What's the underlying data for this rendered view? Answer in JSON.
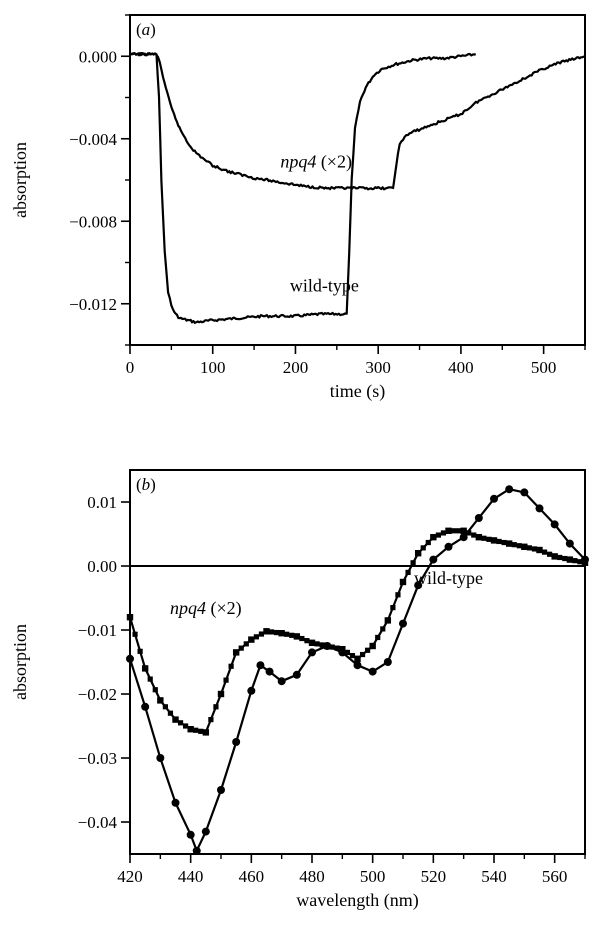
{
  "chart_data": [
    {
      "type": "line",
      "panel_label": "a",
      "xlabel": "time (s)",
      "ylabel": "absorption",
      "xlim": [
        0,
        550
      ],
      "ylim": [
        -0.014,
        0.002
      ],
      "xticks": [
        "0",
        "100",
        "200",
        "300",
        "400",
        "500"
      ],
      "yticks": [
        "0.000",
        "−0.004",
        "−0.008",
        "−0.012"
      ],
      "annotations": [
        {
          "name": "npq4",
          "suffix": "(×2)",
          "x": 225,
          "y": -0.0054
        },
        {
          "name": "wild-type",
          "suffix": "",
          "x": 235,
          "y": -0.0114
        }
      ],
      "series": [
        {
          "name": "wild-type",
          "x": [
            0,
            20,
            32,
            35,
            38,
            42,
            46,
            50,
            55,
            60,
            70,
            80,
            100,
            130,
            160,
            200,
            230,
            258,
            262,
            265,
            268,
            272,
            278,
            285,
            295,
            305,
            320,
            340,
            360,
            380,
            400,
            418
          ],
          "y": [
            0.0001,
            0.0001,
            0.0001,
            -0.002,
            -0.006,
            -0.0095,
            -0.0114,
            -0.0121,
            -0.0125,
            -0.0127,
            -0.0128,
            -0.0129,
            -0.0128,
            -0.0127,
            -0.0126,
            -0.0126,
            -0.0125,
            -0.0125,
            -0.0125,
            -0.0095,
            -0.006,
            -0.0035,
            -0.0022,
            -0.0015,
            -0.0009,
            -0.0006,
            -0.0004,
            -0.0002,
            -0.0001,
            -0.0001,
            0.0,
            0.0001
          ]
        },
        {
          "name": "npq4 (×2)",
          "x": [
            0,
            20,
            32,
            36,
            40,
            45,
            50,
            55,
            60,
            70,
            80,
            100,
            120,
            150,
            180,
            210,
            240,
            270,
            300,
            318,
            322,
            326,
            332,
            340,
            360,
            380,
            400,
            420,
            440,
            460,
            480,
            500,
            520,
            540,
            550
          ],
          "y": [
            0.0001,
            0.0001,
            0.0001,
            -0.0003,
            -0.001,
            -0.0018,
            -0.0025,
            -0.003,
            -0.0035,
            -0.0042,
            -0.0047,
            -0.0053,
            -0.0056,
            -0.0059,
            -0.0061,
            -0.0063,
            -0.0064,
            -0.0064,
            -0.0064,
            -0.0064,
            -0.0052,
            -0.0043,
            -0.0039,
            -0.0037,
            -0.0034,
            -0.0031,
            -0.0028,
            -0.0022,
            -0.0018,
            -0.0014,
            -0.001,
            -0.0006,
            -0.0003,
            -0.0001,
            0.0
          ]
        }
      ]
    },
    {
      "type": "line",
      "panel_label": "b",
      "xlabel": "wavelength (nm)",
      "ylabel": "absorption",
      "xlim": [
        420,
        570
      ],
      "ylim": [
        -0.045,
        0.015
      ],
      "xticks": [
        "420",
        "440",
        "460",
        "480",
        "500",
        "520",
        "540",
        "560"
      ],
      "yticks": [
        "0.01",
        "0.00",
        "−0.01",
        "−0.02",
        "−0.03",
        "−0.04"
      ],
      "annotations": [
        {
          "name": "npq4",
          "suffix": "(×2)",
          "x": 445,
          "y": -0.0075
        },
        {
          "name": "wild-type",
          "suffix": "",
          "x": 525,
          "y": -0.0028
        }
      ],
      "series": [
        {
          "name": "wild-type",
          "marker": "circle",
          "x": [
            420,
            425,
            430,
            435,
            440,
            442,
            445,
            450,
            455,
            460,
            463,
            466,
            470,
            475,
            480,
            485,
            490,
            495,
            500,
            505,
            510,
            515,
            520,
            525,
            530,
            535,
            540,
            545,
            550,
            555,
            560,
            565,
            570
          ],
          "y": [
            -0.0145,
            -0.022,
            -0.03,
            -0.037,
            -0.042,
            -0.0445,
            -0.0415,
            -0.035,
            -0.0275,
            -0.0195,
            -0.0155,
            -0.0165,
            -0.018,
            -0.017,
            -0.0135,
            -0.0125,
            -0.0135,
            -0.0155,
            -0.0165,
            -0.015,
            -0.009,
            -0.003,
            0.001,
            0.003,
            0.0045,
            0.0075,
            0.0105,
            0.012,
            0.0115,
            0.009,
            0.0065,
            0.0035,
            0.001
          ]
        },
        {
          "name": "npq4 (×2)",
          "marker": "square",
          "x": [
            420,
            425,
            430,
            435,
            440,
            445,
            450,
            455,
            460,
            465,
            470,
            475,
            480,
            485,
            490,
            495,
            500,
            505,
            510,
            515,
            520,
            525,
            530,
            535,
            540,
            545,
            550,
            555,
            560,
            565,
            570
          ],
          "y": [
            -0.008,
            -0.016,
            -0.021,
            -0.024,
            -0.0255,
            -0.026,
            -0.02,
            -0.0135,
            -0.0115,
            -0.0102,
            -0.0105,
            -0.011,
            -0.012,
            -0.0125,
            -0.013,
            -0.0145,
            -0.0125,
            -0.0085,
            -0.0025,
            0.002,
            0.0045,
            0.0055,
            0.0055,
            0.0045,
            0.004,
            0.0035,
            0.003,
            0.0025,
            0.0015,
            0.001,
            0.0005
          ]
        }
      ]
    }
  ]
}
